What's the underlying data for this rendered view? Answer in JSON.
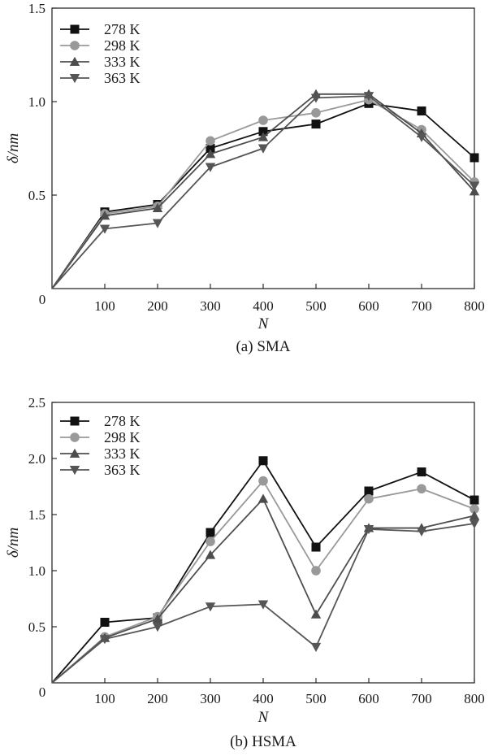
{
  "chart_data": [
    {
      "type": "line",
      "caption": "(a) SMA",
      "xlabel": "N",
      "ylabel": "δ/nm",
      "x": [
        0,
        100,
        200,
        300,
        400,
        500,
        600,
        700,
        800
      ],
      "xlim": [
        0,
        800
      ],
      "ylim": [
        0,
        1.5
      ],
      "x_ticks": [
        100,
        200,
        300,
        400,
        500,
        600,
        700,
        800
      ],
      "y_ticks": [
        0.5,
        1.0,
        1.5
      ],
      "x_tick_labels": [
        "100",
        "200",
        "300",
        "400",
        "500",
        "600",
        "700",
        "800"
      ],
      "y_tick_labels": [
        "0.5",
        "1.0",
        "1.5"
      ],
      "origin_label": "0",
      "grid": false,
      "legend_position": "top-left",
      "series": [
        {
          "name": "278 K",
          "marker": "square",
          "color": "#111111",
          "values": [
            0,
            0.41,
            0.45,
            0.75,
            0.84,
            0.88,
            0.99,
            0.95,
            0.7
          ]
        },
        {
          "name": "298 K",
          "marker": "circle",
          "color": "#999999",
          "values": [
            0,
            0.4,
            0.44,
            0.79,
            0.9,
            0.94,
            1.01,
            0.85,
            0.57
          ]
        },
        {
          "name": "333 K",
          "marker": "triangle-up",
          "color": "#4d4d4d",
          "values": [
            0,
            0.39,
            0.43,
            0.72,
            0.81,
            1.04,
            1.04,
            0.83,
            0.52
          ]
        },
        {
          "name": "363 K",
          "marker": "triangle-down",
          "color": "#555555",
          "values": [
            0,
            0.32,
            0.35,
            0.65,
            0.75,
            1.02,
            1.03,
            0.81,
            0.55
          ]
        }
      ]
    },
    {
      "type": "line",
      "caption": "(b) HSMA",
      "xlabel": "N",
      "ylabel": "δ/nm",
      "x": [
        0,
        100,
        200,
        300,
        400,
        500,
        600,
        700,
        800
      ],
      "xlim": [
        0,
        800
      ],
      "ylim": [
        0,
        2.5
      ],
      "x_ticks": [
        100,
        200,
        300,
        400,
        500,
        600,
        700,
        800
      ],
      "y_ticks": [
        0.5,
        1.0,
        1.5,
        2.0,
        2.5
      ],
      "x_tick_labels": [
        "100",
        "200",
        "300",
        "400",
        "500",
        "600",
        "700",
        "800"
      ],
      "y_tick_labels": [
        "0.5",
        "1.0",
        "1.5",
        "2.0",
        "2.5"
      ],
      "origin_label": "0",
      "grid": false,
      "legend_position": "top-left",
      "series": [
        {
          "name": "278 K",
          "marker": "square",
          "color": "#111111",
          "values": [
            0,
            0.54,
            0.58,
            1.34,
            1.98,
            1.21,
            1.71,
            1.88,
            1.63
          ]
        },
        {
          "name": "298 K",
          "marker": "circle",
          "color": "#999999",
          "values": [
            0,
            0.41,
            0.59,
            1.26,
            1.8,
            1.0,
            1.64,
            1.73,
            1.55
          ]
        },
        {
          "name": "333 K",
          "marker": "triangle-up",
          "color": "#4d4d4d",
          "values": [
            0,
            0.4,
            0.57,
            1.14,
            1.64,
            0.61,
            1.38,
            1.38,
            1.49
          ]
        },
        {
          "name": "363 K",
          "marker": "triangle-down",
          "color": "#555555",
          "values": [
            0,
            0.39,
            0.5,
            0.68,
            0.7,
            0.32,
            1.37,
            1.35,
            1.42
          ]
        }
      ]
    }
  ]
}
